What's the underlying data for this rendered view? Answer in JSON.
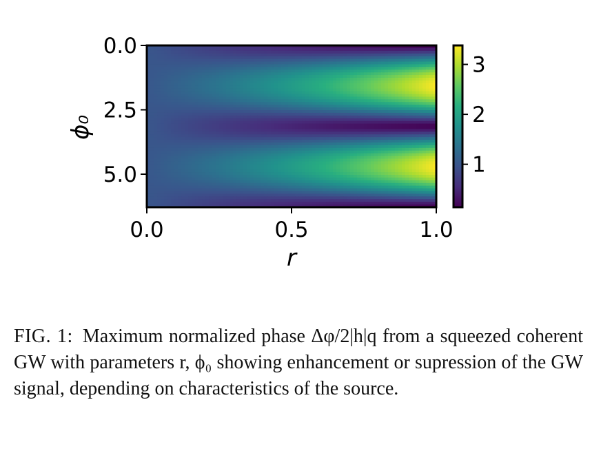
{
  "chart_data": {
    "type": "heatmap",
    "title": "",
    "xlabel": "r",
    "ylabel": "ϕ₀",
    "xlim": [
      0.0,
      1.0
    ],
    "ylim": [
      0.0,
      6.2832
    ],
    "y_inverted": true,
    "x_ticks": [
      0.0,
      0.5,
      1.0
    ],
    "x_tick_labels": [
      "0.0",
      "0.5",
      "1.0"
    ],
    "y_ticks": [
      0.0,
      2.5,
      5.0
    ],
    "y_tick_labels": [
      "0.0",
      "2.5",
      "5.0"
    ],
    "function": "normalized phase magnitude |cosh(r) - sinh(r) e^{-2 i ϕ₀}|, increasing with r, peaking near ϕ₀ ≈ 1.57 and 4.71, minimum near ϕ₀ = 0, 3.14, 6.28",
    "colormap": "viridis",
    "colorbar": {
      "range": [
        0.14,
        3.38
      ],
      "ticks": [
        1,
        2,
        3
      ],
      "tick_labels": [
        "1",
        "2",
        "3"
      ]
    },
    "grid": false
  },
  "caption": {
    "label": "FIG. 1:",
    "text": "Maximum normalized phase Δφ/2|h|q from a squeezed coherent GW with parameters r, ϕ₀ showing enhancement or supression of the GW signal, depending on characteristics of the source."
  }
}
